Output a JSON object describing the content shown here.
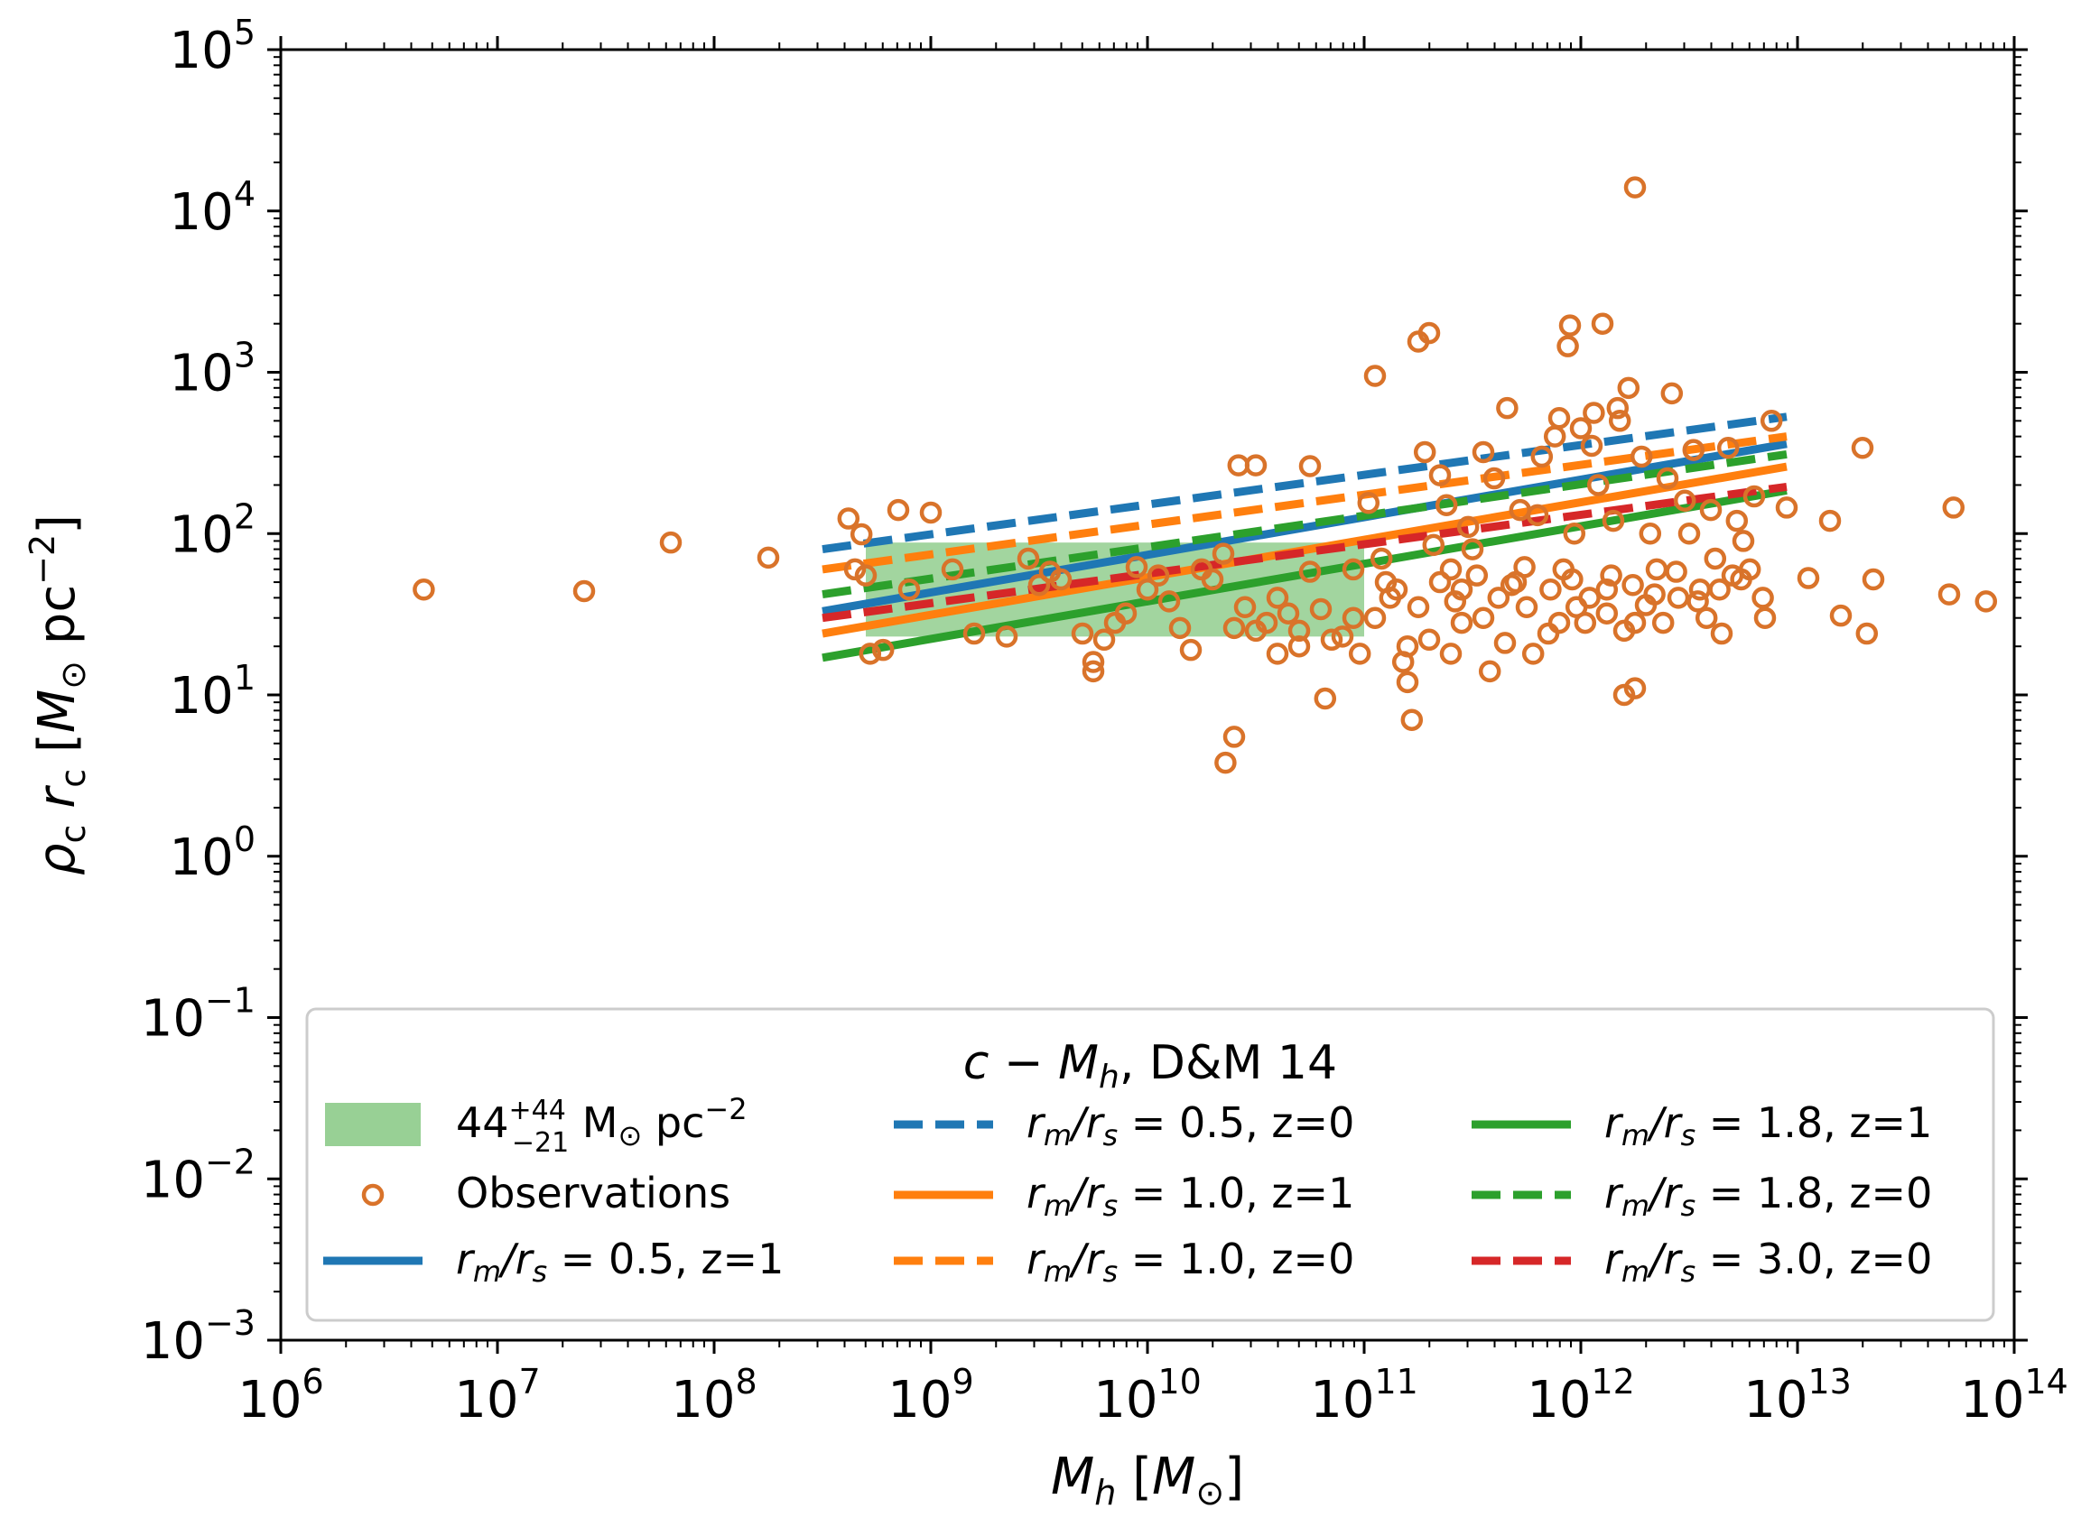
{
  "chart_data": {
    "type": "scatter",
    "xscale": "log",
    "yscale": "log",
    "xlim_exp": [
      6,
      14
    ],
    "ylim_exp": [
      -3,
      5
    ],
    "xlabel": {
      "main": "M",
      "sub": "h",
      "unit_l": "[",
      "unit_sym": "M",
      "unit_sub": "⊙",
      "unit_r": "]"
    },
    "ylabel": {
      "rho": "ρ",
      "c1": "c",
      "r": "r",
      "c2": "c",
      "unit_l": "[",
      "unit_sym": "M",
      "unit_sub": "⊙",
      "unit_pc": " pc",
      "unit_exp": "−2",
      "unit_r": "]"
    },
    "x_tick_exponents": [
      "6",
      "7",
      "8",
      "9",
      "10",
      "11",
      "12",
      "13",
      "14"
    ],
    "y_tick_exponents": [
      "−3",
      "−2",
      "−1",
      "0",
      "1",
      "2",
      "3",
      "4",
      "5"
    ],
    "tick_base": "10",
    "band": {
      "x_range": [
        8.7,
        11.0
      ],
      "y_center": 44,
      "y_low": 23,
      "y_high": 88,
      "color": "#98d095",
      "label_base": "44",
      "label_sup": "+44",
      "label_sub": "−21",
      "label_unit": " M",
      "label_sun": "⊙",
      "label_pc": " pc",
      "label_exp": "−2"
    },
    "observations": {
      "label": "Observations",
      "color": "#d9732a",
      "points": [
        [
          6.66,
          45
        ],
        [
          7.4,
          44
        ],
        [
          7.8,
          88
        ],
        [
          8.25,
          71
        ],
        [
          8.62,
          124
        ],
        [
          8.68,
          99
        ],
        [
          8.72,
          18
        ],
        [
          8.78,
          19
        ],
        [
          8.65,
          60
        ],
        [
          8.7,
          55
        ],
        [
          8.85,
          140
        ],
        [
          9.0,
          135
        ],
        [
          8.9,
          45
        ],
        [
          9.1,
          60
        ],
        [
          9.2,
          24
        ],
        [
          9.35,
          23
        ],
        [
          9.5,
          48
        ],
        [
          9.6,
          52
        ],
        [
          9.7,
          24
        ],
        [
          9.8,
          22
        ],
        [
          9.75,
          16
        ],
        [
          9.75,
          14
        ],
        [
          9.85,
          28
        ],
        [
          9.9,
          32
        ],
        [
          10.1,
          38
        ],
        [
          10.15,
          26
        ],
        [
          10.2,
          19
        ],
        [
          10.3,
          52
        ],
        [
          10.4,
          26
        ],
        [
          10.45,
          35
        ],
        [
          10.5,
          25
        ],
        [
          10.55,
          28
        ],
        [
          10.6,
          40
        ],
        [
          10.65,
          32
        ],
        [
          10.7,
          25
        ],
        [
          10.75,
          58
        ],
        [
          10.8,
          34
        ],
        [
          10.9,
          23
        ],
        [
          10.95,
          30
        ],
        [
          10.0,
          45
        ],
        [
          10.05,
          55
        ],
        [
          9.95,
          62
        ],
        [
          10.25,
          60
        ],
        [
          10.35,
          75
        ],
        [
          9.45,
          70
        ],
        [
          9.55,
          58
        ],
        [
          10.4,
          5.5
        ],
        [
          10.36,
          3.8
        ],
        [
          10.42,
          265
        ],
        [
          10.5,
          265
        ],
        [
          10.6,
          18
        ],
        [
          10.7,
          20
        ],
        [
          10.75,
          262
        ],
        [
          10.85,
          22
        ],
        [
          10.82,
          9.5
        ],
        [
          10.95,
          60
        ],
        [
          10.98,
          18
        ],
        [
          11.02,
          155
        ],
        [
          11.05,
          30
        ],
        [
          11.05,
          950
        ],
        [
          11.15,
          45
        ],
        [
          11.2,
          20
        ],
        [
          11.25,
          35
        ],
        [
          11.28,
          320
        ],
        [
          11.3,
          22
        ],
        [
          11.18,
          16
        ],
        [
          11.2,
          12
        ],
        [
          11.22,
          7
        ],
        [
          11.25,
          1550
        ],
        [
          11.3,
          1750
        ],
        [
          11.35,
          230
        ],
        [
          11.38,
          150
        ],
        [
          11.4,
          60
        ],
        [
          11.4,
          18
        ],
        [
          11.45,
          45
        ],
        [
          11.48,
          110
        ],
        [
          11.5,
          80
        ],
        [
          11.55,
          320
        ],
        [
          11.55,
          30
        ],
        [
          11.58,
          14
        ],
        [
          11.6,
          220
        ],
        [
          11.62,
          40
        ],
        [
          11.65,
          21
        ],
        [
          11.66,
          600
        ],
        [
          11.7,
          50
        ],
        [
          11.72,
          140
        ],
        [
          11.75,
          35
        ],
        [
          11.78,
          18
        ],
        [
          11.8,
          130
        ],
        [
          11.82,
          300
        ],
        [
          11.85,
          24
        ],
        [
          11.88,
          400
        ],
        [
          11.9,
          520
        ],
        [
          11.92,
          60
        ],
        [
          11.94,
          1450
        ],
        [
          11.95,
          1950
        ],
        [
          11.97,
          100
        ],
        [
          11.98,
          35
        ],
        [
          12.0,
          450
        ],
        [
          12.02,
          28
        ],
        [
          12.05,
          350
        ],
        [
          12.06,
          560
        ],
        [
          12.08,
          200
        ],
        [
          12.1,
          2000
        ],
        [
          12.12,
          45
        ],
        [
          12.15,
          120
        ],
        [
          12.17,
          600
        ],
        [
          12.18,
          500
        ],
        [
          12.2,
          25
        ],
        [
          12.2,
          10
        ],
        [
          12.22,
          800
        ],
        [
          12.25,
          28
        ],
        [
          12.25,
          11
        ],
        [
          12.28,
          300
        ],
        [
          12.3,
          36
        ],
        [
          12.32,
          100
        ],
        [
          12.35,
          60
        ],
        [
          12.38,
          28
        ],
        [
          12.4,
          220
        ],
        [
          12.42,
          740
        ],
        [
          12.45,
          40
        ],
        [
          12.48,
          160
        ],
        [
          12.5,
          100
        ],
        [
          12.52,
          330
        ],
        [
          12.55,
          45
        ],
        [
          12.58,
          30
        ],
        [
          12.6,
          140
        ],
        [
          12.62,
          70
        ],
        [
          12.65,
          24
        ],
        [
          12.68,
          340
        ],
        [
          12.7,
          55
        ],
        [
          12.72,
          120
        ],
        [
          12.75,
          90
        ],
        [
          12.78,
          60
        ],
        [
          12.8,
          170
        ],
        [
          12.85,
          30
        ],
        [
          12.88,
          500
        ],
        [
          12.95,
          145
        ],
        [
          12.25,
          14000
        ],
        [
          13.05,
          53
        ],
        [
          13.15,
          120
        ],
        [
          13.2,
          31
        ],
        [
          13.3,
          340
        ],
        [
          13.32,
          24
        ],
        [
          13.35,
          52
        ],
        [
          13.7,
          42
        ],
        [
          13.72,
          145
        ],
        [
          13.87,
          38
        ],
        [
          11.1,
          50
        ],
        [
          11.12,
          40
        ],
        [
          11.35,
          50
        ],
        [
          11.42,
          38
        ],
        [
          11.52,
          55
        ],
        [
          11.68,
          48
        ],
        [
          11.74,
          62
        ],
        [
          11.86,
          45
        ],
        [
          11.96,
          52
        ],
        [
          12.04,
          40
        ],
        [
          12.14,
          55
        ],
        [
          12.24,
          48
        ],
        [
          12.34,
          42
        ],
        [
          12.44,
          58
        ],
        [
          12.54,
          38
        ],
        [
          12.64,
          45
        ],
        [
          12.74,
          52
        ],
        [
          12.84,
          40
        ],
        [
          11.08,
          70
        ],
        [
          11.32,
          85
        ],
        [
          11.45,
          28
        ],
        [
          11.9,
          28
        ],
        [
          12.12,
          32
        ]
      ]
    },
    "series": [
      {
        "name": "rm_rs_05_z1",
        "label_var": "r",
        "label_m": "m",
        "label_slash": "/",
        "label_r2": "r",
        "label_s": "s",
        "label_value": " = 0.5, z=1",
        "color": "#1f77b4",
        "dash": false,
        "x": [
          8.5,
          12.95
        ],
        "y": [
          33,
          360
        ]
      },
      {
        "name": "rm_rs_05_z0",
        "label_var": "r",
        "label_m": "m",
        "label_slash": "/",
        "label_r2": "r",
        "label_s": "s",
        "label_value": " = 0.5, z=0",
        "color": "#1f77b4",
        "dash": true,
        "x": [
          8.5,
          12.95
        ],
        "y": [
          80,
          530
        ]
      },
      {
        "name": "rm_rs_10_z1",
        "label_var": "r",
        "label_m": "m",
        "label_slash": "/",
        "label_r2": "r",
        "label_s": "s",
        "label_value": " = 1.0, z=1",
        "color": "#ff7f0e",
        "dash": false,
        "x": [
          8.5,
          12.95
        ],
        "y": [
          24,
          260
        ]
      },
      {
        "name": "rm_rs_10_z0",
        "label_var": "r",
        "label_m": "m",
        "label_slash": "/",
        "label_r2": "r",
        "label_s": "s",
        "label_value": " = 1.0, z=0",
        "color": "#ff7f0e",
        "dash": true,
        "x": [
          8.5,
          12.95
        ],
        "y": [
          60,
          400
        ]
      },
      {
        "name": "rm_rs_18_z1",
        "label_var": "r",
        "label_m": "m",
        "label_slash": "/",
        "label_r2": "r",
        "label_s": "s",
        "label_value": " = 1.8, z=1",
        "color": "#2ca02c",
        "dash": false,
        "x": [
          8.5,
          12.95
        ],
        "y": [
          17,
          185
        ]
      },
      {
        "name": "rm_rs_18_z0",
        "label_var": "r",
        "label_m": "m",
        "label_slash": "/",
        "label_r2": "r",
        "label_s": "s",
        "label_value": " = 1.8, z=0",
        "color": "#2ca02c",
        "dash": true,
        "x": [
          8.5,
          12.95
        ],
        "y": [
          42,
          310
        ]
      },
      {
        "name": "rm_rs_30_z0",
        "label_var": "r",
        "label_m": "m",
        "label_slash": "/",
        "label_r2": "r",
        "label_s": "s",
        "label_value": " = 3.0, z=0",
        "color": "#d62728",
        "dash": true,
        "x": [
          8.5,
          12.95
        ],
        "y": [
          30,
          195
        ]
      }
    ],
    "legend": {
      "title_c": "c",
      "title_minus": " − ",
      "title_m": "M",
      "title_h": "h",
      "title_rest": ", D&M 14",
      "placement": "lower-center",
      "columns": [
        [
          "band",
          "observations",
          "rm_rs_05_z1"
        ],
        [
          "rm_rs_05_z0",
          "rm_rs_10_z1",
          "rm_rs_10_z0"
        ],
        [
          "rm_rs_18_z1",
          "rm_rs_18_z0",
          "rm_rs_30_z0"
        ]
      ]
    }
  }
}
